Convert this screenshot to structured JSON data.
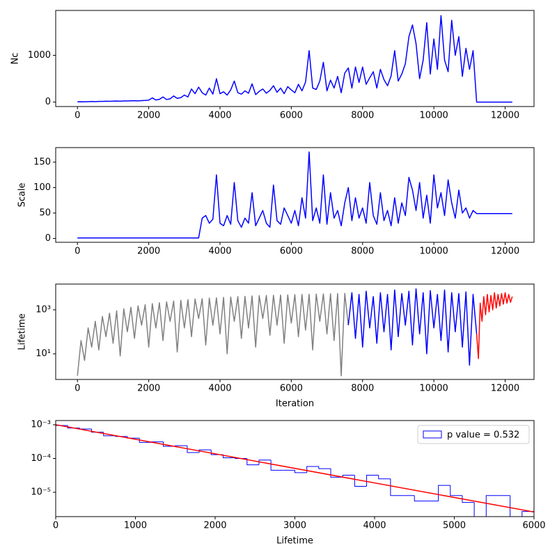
{
  "chart_data": [
    {
      "type": "line",
      "ylabel": "Nc",
      "xlim": [
        -610,
        12810
      ],
      "ylim": [
        -95,
        1960
      ],
      "xticks": [
        0,
        2000,
        4000,
        6000,
        8000,
        10000,
        12000
      ],
      "yticks": [
        0,
        1000
      ],
      "series": [
        {
          "color": "blue",
          "x": [
            0,
            100,
            200,
            300,
            400,
            500,
            600,
            700,
            800,
            900,
            1000,
            1100,
            1200,
            1300,
            1400,
            1500,
            1600,
            1700,
            1800,
            1900,
            2000,
            2100,
            2200,
            2300,
            2400,
            2500,
            2600,
            2700,
            2800,
            2900,
            3000,
            3100,
            3200,
            3300,
            3400,
            3500,
            3600,
            3700,
            3800,
            3900,
            4000,
            4100,
            4200,
            4300,
            4400,
            4500,
            4600,
            4700,
            4800,
            4900,
            5000,
            5100,
            5200,
            5300,
            5400,
            5500,
            5600,
            5700,
            5800,
            5900,
            6000,
            6100,
            6200,
            6300,
            6400,
            6500,
            6600,
            6700,
            6800,
            6900,
            7000,
            7100,
            7200,
            7300,
            7400,
            7500,
            7600,
            7700,
            7800,
            7900,
            8000,
            8100,
            8200,
            8300,
            8400,
            8500,
            8600,
            8700,
            8800,
            8900,
            9000,
            9100,
            9200,
            9300,
            9400,
            9500,
            9600,
            9700,
            9800,
            9900,
            10000,
            10100,
            10200,
            10300,
            10400,
            10500,
            10600,
            10700,
            10800,
            10900,
            11000,
            11100,
            11200,
            12200
          ],
          "values": [
            5,
            8,
            6,
            10,
            12,
            9,
            15,
            14,
            18,
            16,
            20,
            22,
            19,
            25,
            24,
            28,
            30,
            26,
            32,
            35,
            40,
            90,
            45,
            60,
            110,
            55,
            70,
            130,
            80,
            95,
            150,
            110,
            280,
            180,
            320,
            200,
            150,
            300,
            170,
            500,
            180,
            220,
            150,
            260,
            450,
            200,
            170,
            240,
            190,
            390,
            160,
            230,
            280,
            190,
            250,
            350,
            210,
            300,
            180,
            330,
            260,
            200,
            380,
            240,
            430,
            1100,
            300,
            270,
            450,
            850,
            240,
            470,
            300,
            550,
            200,
            620,
            730,
            300,
            750,
            420,
            750,
            380,
            520,
            650,
            300,
            700,
            480,
            350,
            560,
            1100,
            450,
            600,
            820,
            1400,
            1650,
            1250,
            500,
            900,
            1700,
            600,
            1350,
            700,
            1850,
            900,
            650,
            1750,
            1000,
            1400,
            550,
            1150,
            700,
            1100,
            0,
            0
          ]
        }
      ]
    },
    {
      "type": "line",
      "ylabel": "Scale",
      "xlim": [
        -610,
        12810
      ],
      "ylim": [
        -7.5,
        178.5
      ],
      "xticks": [
        0,
        2000,
        4000,
        6000,
        8000,
        10000,
        12000
      ],
      "yticks": [
        0,
        50,
        100,
        150
      ],
      "series": [
        {
          "color": "blue",
          "x": [
            0,
            100,
            200,
            300,
            400,
            500,
            600,
            700,
            800,
            900,
            1000,
            1100,
            1200,
            1300,
            1400,
            1500,
            1600,
            1700,
            1800,
            1900,
            2000,
            2100,
            2200,
            2300,
            2400,
            2500,
            2600,
            2700,
            2800,
            2900,
            3000,
            3100,
            3200,
            3300,
            3400,
            3500,
            3600,
            3700,
            3800,
            3900,
            4000,
            4100,
            4200,
            4300,
            4400,
            4500,
            4600,
            4700,
            4800,
            4900,
            5000,
            5100,
            5200,
            5300,
            5400,
            5500,
            5600,
            5700,
            5800,
            5900,
            6000,
            6100,
            6200,
            6300,
            6400,
            6500,
            6600,
            6700,
            6800,
            6900,
            7000,
            7100,
            7200,
            7300,
            7400,
            7500,
            7600,
            7700,
            7800,
            7900,
            8000,
            8100,
            8200,
            8300,
            8400,
            8500,
            8600,
            8700,
            8800,
            8900,
            9000,
            9100,
            9200,
            9300,
            9400,
            9500,
            9600,
            9700,
            9800,
            9900,
            10000,
            10100,
            10200,
            10300,
            10400,
            10500,
            10600,
            10700,
            10800,
            10900,
            11000,
            11100,
            11200,
            12200
          ],
          "values": [
            1,
            1,
            1,
            1,
            1,
            1,
            1,
            1,
            1,
            1,
            1,
            1,
            1,
            1,
            1,
            1,
            1,
            1,
            1,
            1,
            1,
            1,
            1,
            1,
            1,
            1,
            1,
            1,
            1,
            1,
            1,
            1,
            1,
            1,
            1,
            40,
            45,
            30,
            38,
            125,
            30,
            25,
            45,
            28,
            110,
            35,
            22,
            40,
            30,
            90,
            25,
            40,
            55,
            30,
            22,
            105,
            35,
            28,
            60,
            45,
            30,
            55,
            25,
            80,
            40,
            170,
            35,
            60,
            30,
            125,
            28,
            90,
            40,
            55,
            25,
            70,
            100,
            35,
            80,
            40,
            60,
            30,
            110,
            45,
            28,
            90,
            35,
            55,
            25,
            80,
            30,
            70,
            45,
            120,
            95,
            55,
            110,
            40,
            85,
            30,
            125,
            60,
            90,
            45,
            115,
            70,
            40,
            95,
            50,
            60,
            40,
            55,
            49,
            49
          ]
        }
      ]
    },
    {
      "type": "line",
      "log_y": true,
      "xlabel": "Iteration",
      "ylabel": "Lifetime",
      "xlim": [
        -610,
        12810
      ],
      "ylim": [
        0.68,
        14800
      ],
      "xticks": [
        0,
        2000,
        4000,
        6000,
        8000,
        10000,
        12000
      ],
      "yticks": [
        {
          "value": 10,
          "label": "10¹"
        },
        {
          "value": 1000,
          "label": "10³"
        }
      ],
      "series": [
        {
          "color": "gray",
          "x": [
            0,
            100,
            200,
            300,
            400,
            500,
            600,
            700,
            800,
            900,
            1000,
            1100,
            1200,
            1300,
            1400,
            1500,
            1600,
            1700,
            1800,
            1900,
            2000,
            2100,
            2200,
            2300,
            2400,
            2500,
            2600,
            2700,
            2800,
            2900,
            3000,
            3100,
            3200,
            3300,
            3400,
            3500,
            3600,
            3700,
            3800,
            3900,
            4000,
            4100,
            4200,
            4300,
            4400,
            4500,
            4600,
            4700,
            4800,
            4900,
            5000,
            5100,
            5200,
            5300,
            5400,
            5500,
            5600,
            5700,
            5800,
            5900,
            6000,
            6100,
            6200,
            6300,
            6400,
            6500,
            6600,
            6700,
            6800,
            6900,
            7000,
            7100,
            7200,
            7300,
            7400,
            7500,
            7600
          ],
          "values": [
            1,
            40,
            5,
            150,
            20,
            300,
            15,
            500,
            60,
            700,
            30,
            900,
            8,
            1100,
            100,
            1300,
            50,
            1500,
            200,
            1700,
            20,
            1900,
            150,
            2100,
            40,
            2300,
            300,
            2500,
            12,
            2700,
            150,
            2900,
            60,
            3100,
            400,
            3200,
            25,
            3400,
            200,
            3500,
            80,
            3700,
            10,
            3800,
            300,
            4000,
            50,
            4100,
            150,
            4300,
            20,
            4400,
            400,
            4500,
            70,
            4600,
            200,
            4700,
            30,
            4800,
            250,
            4900,
            60,
            5000,
            120,
            5100,
            15,
            5200,
            300,
            5300,
            80,
            5400,
            40,
            5500,
            1,
            5600,
            200
          ]
        },
        {
          "color": "blue",
          "x": [
            7600,
            7700,
            7800,
            7900,
            8000,
            8100,
            8200,
            8300,
            8400,
            8500,
            8600,
            8700,
            8800,
            8900,
            9000,
            9100,
            9200,
            9300,
            9400,
            9500,
            9600,
            9700,
            9800,
            9900,
            10000,
            10100,
            10200,
            10300,
            10400,
            10500,
            10600,
            10700,
            10800,
            10900,
            11000,
            11100,
            11200
          ],
          "values": [
            200,
            6000,
            50,
            5000,
            20,
            7000,
            150,
            4000,
            30,
            6000,
            100,
            5000,
            15,
            8000,
            60,
            5500,
            200,
            7000,
            25,
            9000,
            80,
            6000,
            10,
            7500,
            150,
            5000,
            40,
            8000,
            12,
            6000,
            100,
            5500,
            20,
            6500,
            3,
            5000,
            80
          ]
        },
        {
          "color": "red",
          "x": [
            11200,
            11250,
            11300,
            11350,
            11400,
            11450,
            11500,
            11550,
            11600,
            11650,
            11700,
            11750,
            11800,
            11850,
            11900,
            11950,
            12000,
            12050,
            12100,
            12150,
            12200
          ],
          "values": [
            80,
            6,
            2000,
            300,
            4000,
            600,
            5000,
            800,
            4500,
            1000,
            6000,
            1200,
            5000,
            1500,
            5500,
            1800,
            6000,
            2000,
            5000,
            2200,
            4000
          ]
        }
      ]
    },
    {
      "type": "histogram",
      "log_y": true,
      "xlabel": "Lifetime",
      "xlim": [
        0,
        6000
      ],
      "ylim": [
        1.9e-06,
        0.00133
      ],
      "xticks": [
        0,
        1000,
        2000,
        3000,
        4000,
        5000,
        6000
      ],
      "yticks": [
        {
          "value": 0.001,
          "label": "10⁻³"
        },
        {
          "value": 0.0001,
          "label": "10⁻⁴"
        },
        {
          "value": 1e-05,
          "label": "10⁻⁵"
        }
      ],
      "legend": "upper right",
      "bins": [
        0,
        150,
        300,
        450,
        600,
        750,
        900,
        1050,
        1200,
        1350,
        1500,
        1650,
        1800,
        1950,
        2100,
        2250,
        2400,
        2550,
        2700,
        2850,
        3000,
        3150,
        3300,
        3450,
        3600,
        3750,
        3900,
        4050,
        4200,
        4350,
        4500,
        4650,
        4800,
        4950,
        5100,
        5250,
        5400,
        5550,
        5700,
        5850,
        6000
      ],
      "series": [
        {
          "name": "p value = 0.532",
          "color": "blue",
          "values": [
            0.00095,
            0.0008,
            0.00075,
            0.0006,
            0.00047,
            0.00045,
            0.0004,
            0.0003,
            0.00031,
            0.00023,
            0.00024,
            0.00015,
            0.00018,
            0.00013,
            0.000105,
            0.0001,
            6.5e-05,
            9e-05,
            4.5e-05,
            4.5e-05,
            3.8e-05,
            5.8e-05,
            5e-05,
            2.8e-05,
            3.2e-05,
            1.5e-05,
            3.2e-05,
            2.5e-05,
            8e-06,
            8e-06,
            5.5e-06,
            5.5e-06,
            1.6e-05,
            8e-06,
            5e-06,
            0,
            8e-06,
            8e-06,
            0,
            2.7e-06
          ]
        }
      ],
      "fit_line": {
        "color": "red",
        "x": [
          0,
          6000
        ],
        "values": [
          0.001,
          2.6e-06
        ]
      }
    }
  ]
}
